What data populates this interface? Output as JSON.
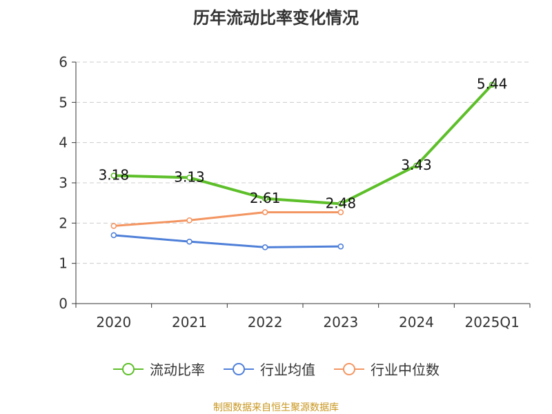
{
  "title": "历年流动比率变化情况",
  "source": "制图数据来自恒生聚源数据库",
  "colors": {
    "流动比率": "#5dbf29",
    "行业均值": "#4e7fd8",
    "行业中位数": "#f39561",
    "grid": "#cccccc",
    "axis": "#333333"
  },
  "chart_data": {
    "type": "line",
    "categories": [
      "2020",
      "2021",
      "2022",
      "2023",
      "2024",
      "2025Q1"
    ],
    "ylim": [
      0,
      6
    ],
    "yticks": [
      "0",
      "1",
      "2",
      "3",
      "4",
      "5",
      "6"
    ],
    "grid": true,
    "legend_position": "bottom",
    "series": [
      {
        "name": "流动比率",
        "values": [
          3.18,
          3.13,
          2.61,
          2.48,
          3.43,
          5.44
        ],
        "labels": [
          "3.18",
          "3.13",
          "2.61",
          "2.48",
          "3.43",
          "5.44"
        ]
      },
      {
        "name": "行业均值",
        "values": [
          1.7,
          1.54,
          1.4,
          1.42,
          null,
          null
        ]
      },
      {
        "name": "行业中位数",
        "values": [
          1.93,
          2.07,
          2.27,
          2.27,
          null,
          null
        ]
      }
    ]
  }
}
